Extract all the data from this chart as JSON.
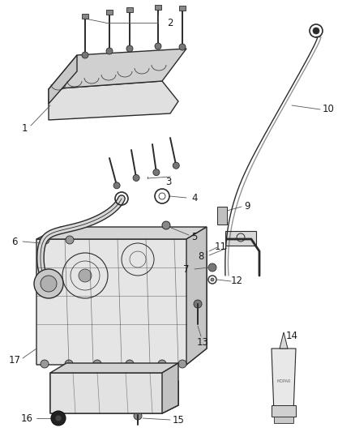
{
  "background_color": "#ffffff",
  "line_color": "#2a2a2a",
  "text_color": "#1a1a1a",
  "leader_color": "#555555",
  "lw_main": 1.0,
  "lw_thin": 0.5,
  "lw_thick": 1.5,
  "label_fs": 8.5,
  "fig_w": 4.38,
  "fig_h": 5.33,
  "dpi": 100
}
